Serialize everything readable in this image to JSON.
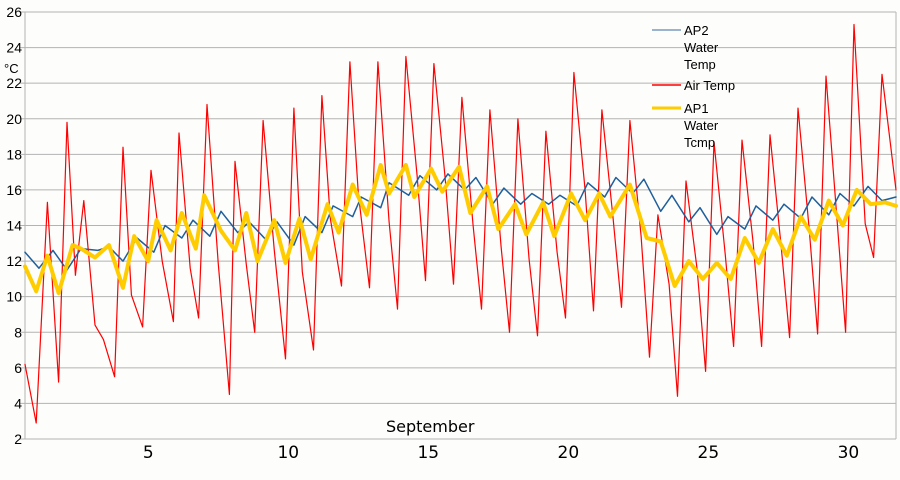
{
  "chart_data": {
    "type": "line",
    "title": "",
    "xlabel": "September",
    "ylabel": "°C",
    "ylim": [
      2,
      26
    ],
    "yticks": [
      2,
      4,
      6,
      8,
      10,
      12,
      14,
      16,
      18,
      20,
      22,
      24,
      26
    ],
    "xlim": [
      0.6,
      31.7
    ],
    "xticks": [
      5,
      10,
      15,
      20,
      25,
      30
    ],
    "grid": {
      "horizontal": true,
      "vertical": false,
      "color": "#b3b3b3"
    },
    "legend_position": "top-right",
    "series": [
      {
        "name": "AP2 Water Temp",
        "legend_lines": [
          "AP2",
          "Water",
          "Temp"
        ],
        "color": "#1f5f9b",
        "width": 1.5,
        "x": [
          0.6,
          1.1,
          1.6,
          2.1,
          2.6,
          3.2,
          3.6,
          4.1,
          4.6,
          5.2,
          5.6,
          6.2,
          6.6,
          7.2,
          7.6,
          8.2,
          8.6,
          9.2,
          9.6,
          10.2,
          10.6,
          11.2,
          11.6,
          12.3,
          12.6,
          13.3,
          13.6,
          14.3,
          14.7,
          15.3,
          15.7,
          16.3,
          16.7,
          17.3,
          17.7,
          18.3,
          18.7,
          19.3,
          19.7,
          20.3,
          20.7,
          21.3,
          21.7,
          22.3,
          22.7,
          23.3,
          23.7,
          24.3,
          24.7,
          25.3,
          25.7,
          26.3,
          26.7,
          27.3,
          27.7,
          28.3,
          28.7,
          29.3,
          29.7,
          30.2,
          30.7,
          31.2,
          31.7
        ],
        "values": [
          12.5,
          11.6,
          12.6,
          11.5,
          12.7,
          12.6,
          12.8,
          12.0,
          13.3,
          12.5,
          14.0,
          13.3,
          14.3,
          13.4,
          14.8,
          13.6,
          14.2,
          13.2,
          14.2,
          12.9,
          14.5,
          13.6,
          15.1,
          14.5,
          15.6,
          15.0,
          16.4,
          15.7,
          16.8,
          16.0,
          16.9,
          16.0,
          16.7,
          15.2,
          16.1,
          15.2,
          15.8,
          15.2,
          15.7,
          15.1,
          16.4,
          15.6,
          16.7,
          15.8,
          16.6,
          14.8,
          15.7,
          14.2,
          15.0,
          13.5,
          14.5,
          13.8,
          15.1,
          14.3,
          15.2,
          14.4,
          15.6,
          14.6,
          15.8,
          15.1,
          16.2,
          15.4,
          15.6
        ]
      },
      {
        "name": "Air Temp",
        "legend_lines": [
          "Air Temp"
        ],
        "color": "#ff0000",
        "width": 1.2,
        "x": [
          0.6,
          1.0,
          1.4,
          1.8,
          2.1,
          2.4,
          2.7,
          3.1,
          3.4,
          3.8,
          4.1,
          4.4,
          4.8,
          5.1,
          5.5,
          5.9,
          6.1,
          6.5,
          6.8,
          7.1,
          7.5,
          7.9,
          8.1,
          8.5,
          8.8,
          9.1,
          9.5,
          9.9,
          10.2,
          10.5,
          10.9,
          11.2,
          11.5,
          11.9,
          12.2,
          12.5,
          12.9,
          13.2,
          13.6,
          13.9,
          14.2,
          14.6,
          14.9,
          15.2,
          15.6,
          15.9,
          16.2,
          16.6,
          16.9,
          17.2,
          17.6,
          17.9,
          18.2,
          18.6,
          18.9,
          19.2,
          19.6,
          19.9,
          20.2,
          20.6,
          20.9,
          21.2,
          21.6,
          21.9,
          22.2,
          22.6,
          22.9,
          23.2,
          23.6,
          23.9,
          24.2,
          24.6,
          24.9,
          25.2,
          25.6,
          25.9,
          26.2,
          26.6,
          26.9,
          27.2,
          27.6,
          27.9,
          28.2,
          28.6,
          28.9,
          29.2,
          29.6,
          29.9,
          30.2,
          30.6,
          30.9,
          31.2,
          31.7
        ],
        "values": [
          6.2,
          2.9,
          15.3,
          5.2,
          19.8,
          11.2,
          15.4,
          8.4,
          7.6,
          5.5,
          18.4,
          10.1,
          8.3,
          17.1,
          12.0,
          8.6,
          19.2,
          11.6,
          8.8,
          20.8,
          11.9,
          4.5,
          17.6,
          11.8,
          8.0,
          19.9,
          12.6,
          6.5,
          20.6,
          11.4,
          7.0,
          21.3,
          14.4,
          10.6,
          23.2,
          15.8,
          10.5,
          23.2,
          14.2,
          9.3,
          23.5,
          16.8,
          10.9,
          23.1,
          16.7,
          10.7,
          21.2,
          14.0,
          9.3,
          20.5,
          12.8,
          8.0,
          20.0,
          12.1,
          7.8,
          19.3,
          12.5,
          8.8,
          22.6,
          16.0,
          9.2,
          20.5,
          14.4,
          9.4,
          19.9,
          13.4,
          6.6,
          14.6,
          10.7,
          4.4,
          16.5,
          11.5,
          5.8,
          18.7,
          12.4,
          7.2,
          18.8,
          13.0,
          7.2,
          19.1,
          12.8,
          7.7,
          20.6,
          13.8,
          7.9,
          22.4,
          14.2,
          8.0,
          25.3,
          14.1,
          12.2,
          22.5,
          16.0
        ]
      },
      {
        "name": "AP1 Water Tcmp",
        "legend_lines": [
          "AP1",
          "Water",
          "Tcmp"
        ],
        "color": "#ffcc00",
        "width": 4,
        "x": [
          0.6,
          1.0,
          1.4,
          1.8,
          2.3,
          2.6,
          3.1,
          3.6,
          4.1,
          4.5,
          5.0,
          5.3,
          5.8,
          6.2,
          6.7,
          7.0,
          7.6,
          8.1,
          8.5,
          8.9,
          9.5,
          9.9,
          10.4,
          10.8,
          11.4,
          11.8,
          12.3,
          12.8,
          13.3,
          13.6,
          14.2,
          14.5,
          15.1,
          15.5,
          16.1,
          16.5,
          17.1,
          17.5,
          18.1,
          18.5,
          19.1,
          19.5,
          20.1,
          20.6,
          21.1,
          21.5,
          22.2,
          22.8,
          23.3,
          23.8,
          24.3,
          24.8,
          25.3,
          25.8,
          26.3,
          26.8,
          27.3,
          27.8,
          28.3,
          28.8,
          29.3,
          29.8,
          30.3,
          30.8,
          31.3,
          31.7
        ],
        "values": [
          11.7,
          10.3,
          12.3,
          10.2,
          12.9,
          12.7,
          12.2,
          12.9,
          10.5,
          13.4,
          12.0,
          14.3,
          12.6,
          14.7,
          12.7,
          15.7,
          13.7,
          12.6,
          14.7,
          12.0,
          14.3,
          11.9,
          14.4,
          12.1,
          15.2,
          13.6,
          16.3,
          14.6,
          17.4,
          15.8,
          17.4,
          15.6,
          17.2,
          15.9,
          17.3,
          14.7,
          16.2,
          13.8,
          15.2,
          13.5,
          15.3,
          13.4,
          15.8,
          14.3,
          15.8,
          14.5,
          16.3,
          13.3,
          13.1,
          10.6,
          12.0,
          11.0,
          11.9,
          11.0,
          13.3,
          11.9,
          13.8,
          12.3,
          14.5,
          13.2,
          15.4,
          14.0,
          16.0,
          15.2,
          15.3,
          15.1
        ]
      }
    ]
  },
  "axis": {
    "unit_label": "°C",
    "x_title": "September",
    "y_tick_labels": [
      "2",
      "4",
      "6",
      "8",
      "10",
      "12",
      "14",
      "16",
      "18",
      "20",
      "22",
      "24",
      "26"
    ],
    "x_tick_labels": [
      "5",
      "10",
      "15",
      "20",
      "25",
      "30"
    ]
  },
  "legend": {
    "items": [
      {
        "lines": [
          "AP2",
          "Water",
          "Temp"
        ],
        "color": "#7b9cbf"
      },
      {
        "lines": [
          "Air Temp"
        ],
        "color": "#ff0000"
      },
      {
        "lines": [
          "AP1",
          "Water",
          "Tcmp"
        ],
        "color": "#ffcc00"
      }
    ]
  }
}
